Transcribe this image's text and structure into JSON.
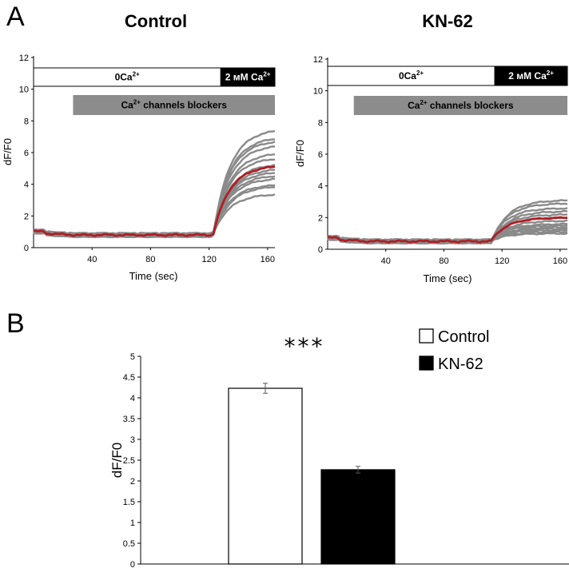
{
  "figure": {
    "panel_a_letter": "A",
    "panel_b_letter": "B"
  },
  "chart_data": [
    {
      "type": "line",
      "id": "control",
      "title": "Control",
      "xlabel": "Time (sec)",
      "ylabel": "dF/F0",
      "xlim": [
        0,
        165
      ],
      "ylim": [
        0,
        12
      ],
      "xticks": [
        40,
        80,
        120,
        160
      ],
      "yticks": [
        0,
        2,
        4,
        6,
        8,
        10,
        12
      ],
      "bars": {
        "first_label": "0Ca",
        "first_sup": "2+",
        "second_label": "2 мМ Ca",
        "second_sup": "2+",
        "switch_time": 128,
        "blocker_label_prefix": "Ca",
        "blocker_sup": "2+",
        "blocker_label_suffix": " channels blockers",
        "blocker_start": 27
      },
      "traces": {
        "baseline": 0.9,
        "rise_start": 123,
        "plateaus": [
          7.5,
          7.0,
          6.8,
          6.5,
          6.0,
          5.7,
          5.3,
          5.0,
          4.8,
          4.6,
          4.4,
          4.0,
          3.9,
          3.4
        ],
        "mean": {
          "baseline": 0.9,
          "plateau": 5.2
        },
        "trace_color": "#8a8a8a",
        "mean_color": "#b01e23"
      }
    },
    {
      "type": "line",
      "id": "kn62",
      "title": "KN-62",
      "xlabel": "Time (sec)",
      "ylabel": "dF/F0",
      "xlim": [
        0,
        165
      ],
      "ylim": [
        0,
        12
      ],
      "xticks": [
        40,
        80,
        120,
        160
      ],
      "yticks": [
        0,
        2,
        4,
        6,
        8,
        10,
        12
      ],
      "bars": {
        "first_label": "0Ca",
        "first_sup": "2+",
        "second_label": "2 мМ Ca",
        "second_sup": "2+",
        "switch_time": 115,
        "blocker_label_prefix": "Ca",
        "blocker_sup": "2+",
        "blocker_label_suffix": " channels blockers",
        "blocker_start": 18
      },
      "traces": {
        "baseline": 0.6,
        "rise_start": 113,
        "plateaus": [
          3.1,
          2.9,
          2.6,
          2.4,
          2.2,
          2.0,
          1.8,
          1.6,
          1.5,
          1.4,
          1.3,
          1.2,
          1.1,
          1.0
        ],
        "mean": {
          "baseline": 0.6,
          "plateau": 2.0
        },
        "trace_color": "#8a8a8a",
        "mean_color": "#b01e23"
      }
    },
    {
      "type": "bar",
      "id": "summary",
      "ylabel": "dF/F0",
      "ylim": [
        0,
        5
      ],
      "yticks": [
        "0",
        "0.5",
        "1",
        "1.5",
        "2",
        "2.5",
        "3",
        "3.5",
        "4",
        "4.5",
        "5"
      ],
      "categories": [
        "Control",
        "KN-62"
      ],
      "values": [
        4.23,
        2.27
      ],
      "errors": [
        0.12,
        0.08
      ],
      "colors": [
        "#ffffff",
        "#000000"
      ],
      "significance": "***",
      "legend": [
        "Control",
        "KN-62"
      ]
    }
  ]
}
